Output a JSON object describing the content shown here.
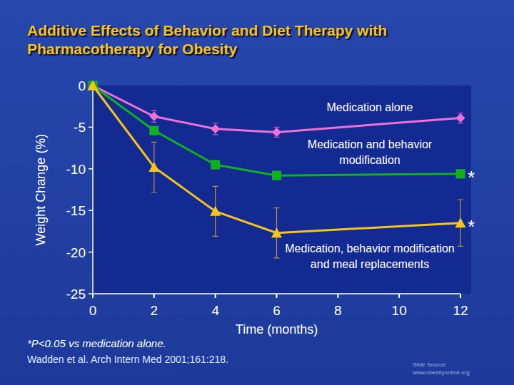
{
  "chart_data": {
    "type": "line",
    "title": "Additive Effects of Behavior and Diet Therapy with Pharmacotherapy for Obesity",
    "x_label": "Time (months)",
    "y_label": "Weight Change (%)",
    "x": [
      0,
      2,
      4,
      6,
      12
    ],
    "xlim": [
      0,
      12
    ],
    "xticks": [
      0,
      2,
      4,
      6,
      8,
      10,
      12
    ],
    "ylim": [
      -25,
      0
    ],
    "yticks": [
      0,
      -5,
      -10,
      -15,
      -20,
      -25
    ],
    "grid": false,
    "series": [
      {
        "name": "Medication alone",
        "color": "#f070d8",
        "marker": "diamond",
        "values": [
          0,
          -3.7,
          -5.2,
          -5.6,
          -3.9
        ],
        "errors": [
          0,
          0.7,
          0.7,
          0.6,
          0.6
        ]
      },
      {
        "name": "Medication and behavior modification",
        "color": "#10b020",
        "marker": "square",
        "values": [
          0,
          -5.4,
          -9.5,
          -10.8,
          -10.6
        ],
        "errors": [
          0,
          0.5,
          0.5,
          0.5,
          0.5
        ]
      },
      {
        "name": "Medication, behavior modification and meal replacements",
        "color": "#f5c518",
        "marker": "triangle",
        "values": [
          0,
          -9.8,
          -15.1,
          -17.7,
          -16.5
        ],
        "errors": [
          0,
          3.0,
          3.0,
          3.0,
          2.8
        ]
      }
    ],
    "annotations": [
      {
        "text": "*",
        "x": 12,
        "y": -10.6
      },
      {
        "text": "*",
        "x": 12,
        "y": -16.5
      }
    ],
    "footnote": "*P<0.05 vs medication alone.",
    "citation": "Wadden et al. Arch Intern Med 2001;161:218.",
    "source": "Slide Source: www.obesityonline.org"
  }
}
